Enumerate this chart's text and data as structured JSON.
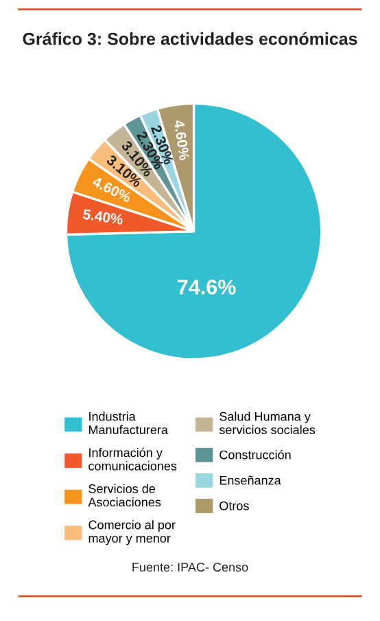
{
  "chart_data": {
    "type": "pie",
    "title": "Gráfico 3: Sobre actividades económicas",
    "categories": [
      "Industria Manufacturera",
      "Información y comunicaciones",
      "Servicios de Asociaciones",
      "Comercio al por mayor y menor",
      "Salud Humana y servicios sociales",
      "Construcción",
      "Enseñanza",
      "Otros"
    ],
    "values": [
      74.6,
      5.4,
      4.6,
      3.1,
      3.1,
      2.3,
      2.3,
      4.6
    ],
    "value_labels": [
      "74.6%",
      "5.40%",
      "4.60%",
      "3.10%",
      "3.10%",
      "2.30%",
      "2.30%",
      "4.60%"
    ],
    "colors": [
      "#33bfcf",
      "#f05a2a",
      "#f7941e",
      "#fbbd7c",
      "#c4b597",
      "#5f9597",
      "#9ad6e1",
      "#ac9a6c"
    ],
    "legend": "bottom",
    "annotations": [
      "Fuente: IPAC- Censo"
    ]
  }
}
